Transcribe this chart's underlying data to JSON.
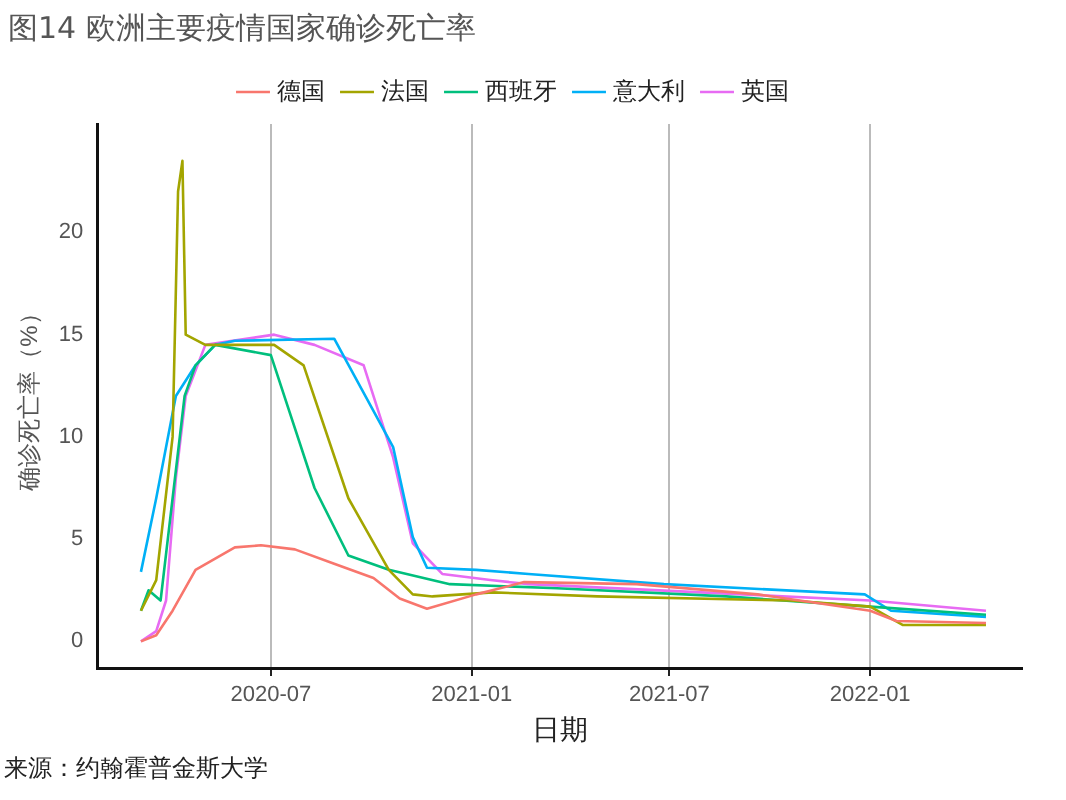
{
  "chart_data": {
    "type": "line",
    "title": "图14 欧洲主要疫情国家确诊死亡率",
    "xlabel": "日期",
    "ylabel": "确诊死亡率（%）",
    "annotations": [
      "来源：约翰霍普金斯大学"
    ],
    "xlim": [
      "2020-01-24",
      "2022-05-20"
    ],
    "xticks": [
      "2020-07",
      "2021-01",
      "2021-07",
      "2022-01"
    ],
    "ylim": [
      -1.3,
      25.3
    ],
    "yticks": [
      0,
      5,
      10,
      15,
      20
    ],
    "grid": "x",
    "legend": "top",
    "marker": "none",
    "line_style": "solid",
    "series": [
      {
        "name": "德国",
        "color": "#f8766d",
        "x": [
          "2020-03-04",
          "2020-03-18",
          "2020-04-02",
          "2020-04-23",
          "2020-05-29",
          "2020-06-22",
          "2020-07-23",
          "2020-08-28",
          "2020-10-03",
          "2020-10-27",
          "2020-11-21",
          "2021-01-05",
          "2021-02-18",
          "2021-06-01",
          "2021-09-20",
          "2022-01-01",
          "2022-01-25",
          "2022-04-17"
        ],
        "values": [
          0,
          0.3,
          1.5,
          3.5,
          4.6,
          4.7,
          4.5,
          3.8,
          3.1,
          2.1,
          1.6,
          2.3,
          2.9,
          2.8,
          2.3,
          1.5,
          1.0,
          0.9
        ]
      },
      {
        "name": "法国",
        "color": "#a3a500",
        "x": [
          "2020-03-04",
          "2020-03-18",
          "2020-04-02",
          "2020-04-07",
          "2020-04-11",
          "2020-04-14",
          "2020-05-02",
          "2020-07-04",
          "2020-07-31",
          "2020-09-10",
          "2020-10-17",
          "2020-11-08",
          "2020-11-26",
          "2021-01-20",
          "2021-04-26",
          "2021-10-20",
          "2022-01-01",
          "2022-01-31",
          "2022-04-17"
        ],
        "values": [
          1.5,
          3,
          10,
          22,
          23.5,
          15,
          14.5,
          14.5,
          13.5,
          7,
          3.5,
          2.3,
          2.2,
          2.4,
          2.2,
          2.0,
          1.7,
          0.8,
          0.8
        ]
      },
      {
        "name": "西班牙",
        "color": "#00bf7d",
        "x": [
          "2020-03-04",
          "2020-03-11",
          "2020-03-22",
          "2020-04-02",
          "2020-04-13",
          "2020-04-23",
          "2020-05-11",
          "2020-07-01",
          "2020-08-10",
          "2020-09-10",
          "2020-10-17",
          "2020-12-12",
          "2021-03-20",
          "2021-08-22",
          "2022-01-01",
          "2022-04-17"
        ],
        "values": [
          1.5,
          2.5,
          2.0,
          7,
          12,
          13.5,
          14.5,
          14,
          7.5,
          4.2,
          3.5,
          2.8,
          2.6,
          2.2,
          1.7,
          1.3
        ]
      },
      {
        "name": "意大利",
        "color": "#00b0f6",
        "x": [
          "2020-03-04",
          "2020-03-18",
          "2020-04-05",
          "2020-04-23",
          "2020-05-11",
          "2020-05-29",
          "2020-08-28",
          "2020-10-21",
          "2020-11-08",
          "2020-11-21",
          "2021-01-05",
          "2021-02-22",
          "2021-06-26",
          "2021-12-27",
          "2022-01-20",
          "2022-04-17"
        ],
        "values": [
          3.4,
          7,
          12,
          13.5,
          14.5,
          14.7,
          14.8,
          9.5,
          5.1,
          3.6,
          3.5,
          3.3,
          2.8,
          2.3,
          1.5,
          1.2
        ]
      },
      {
        "name": "英国",
        "color": "#e76bf3",
        "x": [
          "2020-03-04",
          "2020-03-18",
          "2020-03-27",
          "2020-04-05",
          "2020-04-14",
          "2020-05-02",
          "2020-07-04",
          "2020-08-10",
          "2020-09-24",
          "2020-10-21",
          "2020-11-08",
          "2020-12-05",
          "2021-01-18",
          "2021-02-22",
          "2022-01-01",
          "2022-04-17"
        ],
        "values": [
          0,
          0.5,
          2,
          8,
          12,
          14.5,
          15,
          14.5,
          13.5,
          9,
          4.8,
          3.3,
          3.0,
          2.8,
          2.0,
          1.5
        ]
      }
    ]
  }
}
